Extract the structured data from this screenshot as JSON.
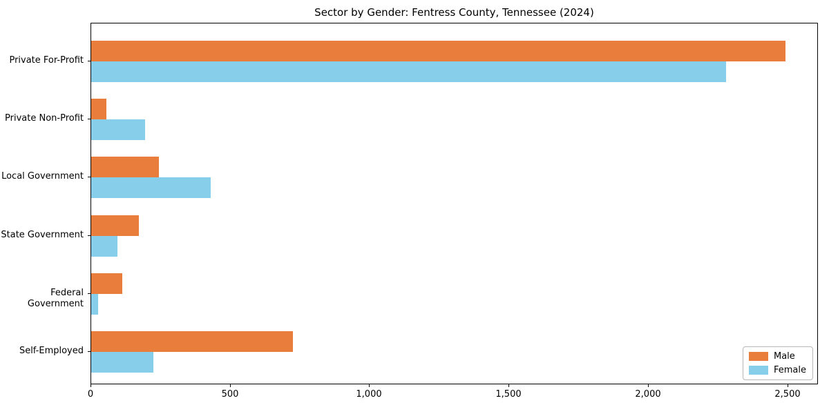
{
  "chart_data": {
    "type": "bar",
    "orientation": "horizontal",
    "title": "Sector by Gender: Fentress County, Tennessee (2024)",
    "categories": [
      "Private For-Profit",
      "Private Non-Profit",
      "Local Government",
      "State Government",
      "Federal Government",
      "Self-Employed"
    ],
    "series": [
      {
        "name": "Male",
        "color": "#E87D3C",
        "values": [
          2490,
          55,
          243,
          170,
          111,
          723
        ]
      },
      {
        "name": "Female",
        "color": "#87CEEB",
        "values": [
          2278,
          193,
          428,
          95,
          25,
          222
        ]
      }
    ],
    "x_ticks": [
      0,
      500,
      1000,
      1500,
      2000,
      2500
    ],
    "x_tick_labels": [
      "0",
      "500",
      "1,000",
      "1,500",
      "2,000",
      "2,500"
    ],
    "xlim": [
      0,
      2610
    ],
    "grid": false,
    "legend_position": "lower right"
  },
  "colors": {
    "male": "#E87D3C",
    "female": "#87CEEB",
    "axis": "#000000",
    "legend_border": "#b7b7b7",
    "background": "#ffffff"
  }
}
